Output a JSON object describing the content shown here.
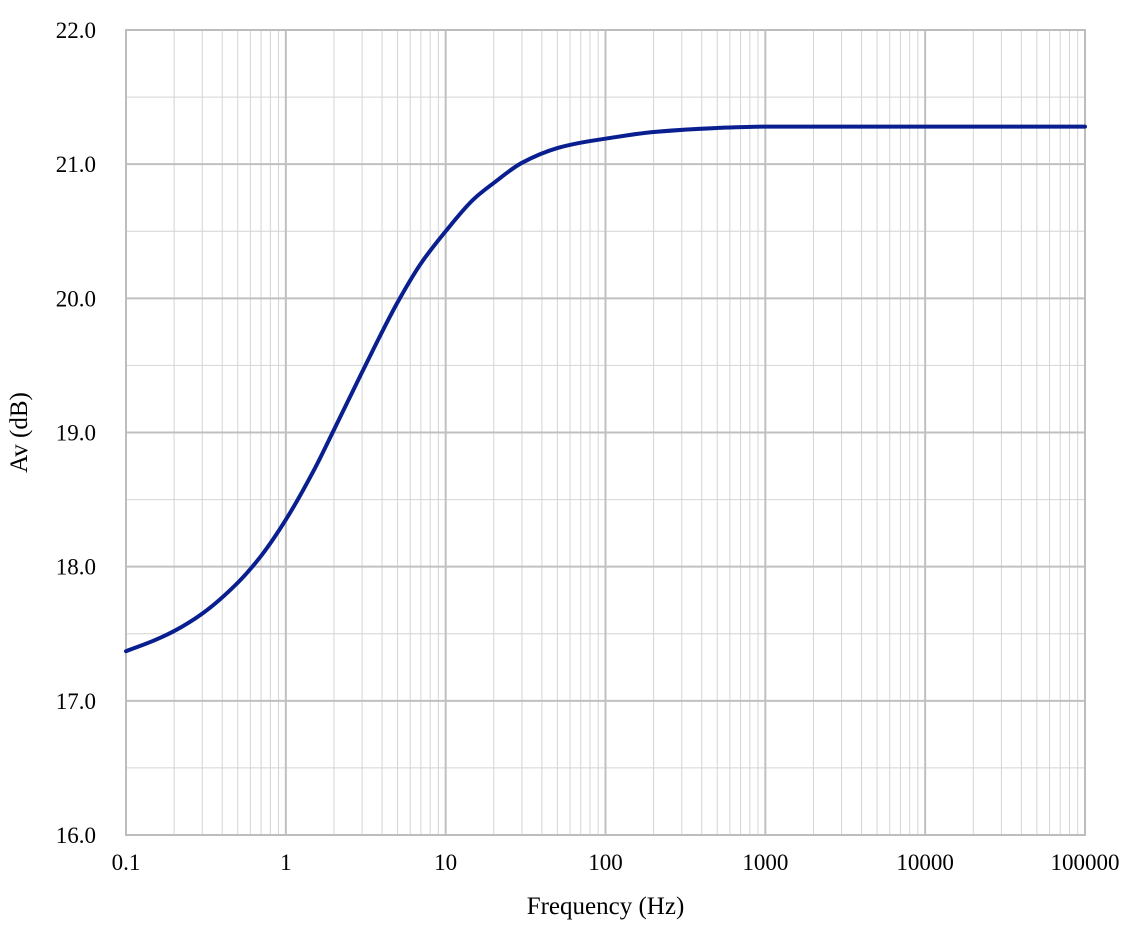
{
  "chart_data": {
    "type": "line",
    "xlabel": "Frequency (Hz)",
    "ylabel": "Av (dB)",
    "x_scale": "log",
    "xlim": [
      0.1,
      100000
    ],
    "ylim": [
      16.0,
      22.0
    ],
    "grid": true,
    "legend": "none",
    "x_ticks": [
      "0.1",
      "1",
      "10",
      "100",
      "1000",
      "10000",
      "100000"
    ],
    "y_ticks": [
      "16.0",
      "17.0",
      "18.0",
      "19.0",
      "20.0",
      "21.0",
      "22.0"
    ],
    "colors": {
      "line": "#0a1f8f",
      "major_grid": "#c0c0c0",
      "minor_grid": "#d4d4d4",
      "frame": "#bdbdbd"
    },
    "series": [
      {
        "x": [
          0.1,
          0.15,
          0.2,
          0.3,
          0.5,
          0.7,
          1,
          1.5,
          2,
          3,
          5,
          7,
          10,
          15,
          20,
          30,
          50,
          70,
          100,
          200,
          500,
          1000,
          10000,
          100000
        ],
        "y": [
          17.37,
          17.45,
          17.52,
          17.65,
          17.88,
          18.08,
          18.35,
          18.72,
          19.02,
          19.45,
          19.97,
          20.26,
          20.5,
          20.74,
          20.86,
          21.01,
          21.12,
          21.16,
          21.19,
          21.24,
          21.27,
          21.28,
          21.28,
          21.28
        ]
      }
    ]
  }
}
